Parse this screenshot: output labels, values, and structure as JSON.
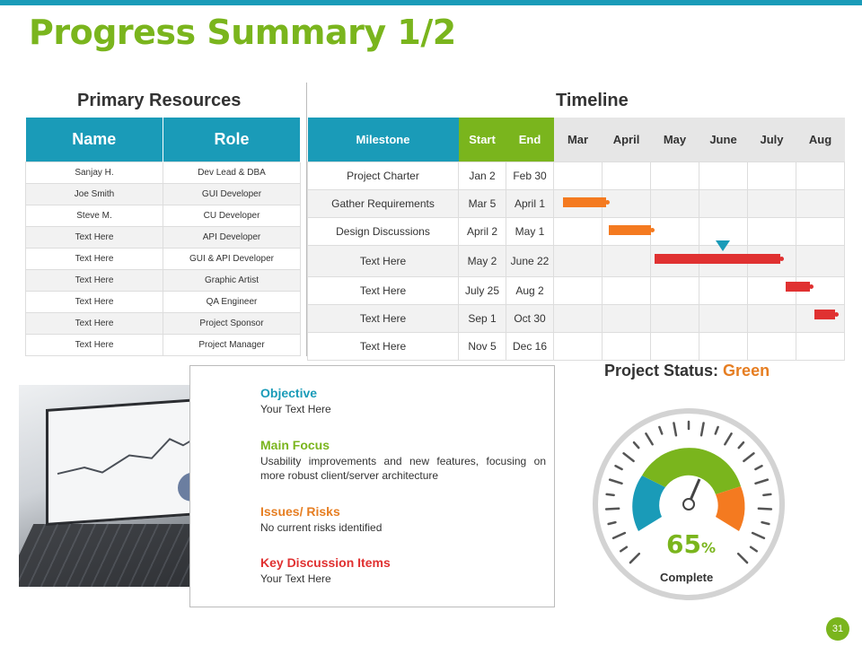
{
  "title": "Progress Summary 1/2",
  "resources": {
    "heading": "Primary Resources",
    "columns": [
      "Name",
      "Role"
    ],
    "rows": [
      [
        "Sanjay H.",
        "Dev Lead & DBA"
      ],
      [
        "Joe Smith",
        "GUI Developer"
      ],
      [
        "Steve M.",
        "CU Developer"
      ],
      [
        "Text Here",
        "API Developer"
      ],
      [
        "Text Here",
        "GUI & API Developer"
      ],
      [
        "Text Here",
        "Graphic Artist"
      ],
      [
        "Text Here",
        "QA Engineer"
      ],
      [
        "Text Here",
        "Project Sponsor"
      ],
      [
        "Text Here",
        "Project Manager"
      ]
    ]
  },
  "timeline": {
    "heading": "Timeline",
    "columns": [
      "Milestone",
      "Start",
      "End",
      "Mar",
      "April",
      "May",
      "June",
      "July",
      "Aug"
    ],
    "rows": [
      [
        "Project Charter",
        "Jan 2",
        "Feb 30"
      ],
      [
        "Gather Requirements",
        "Mar 5",
        "April 1"
      ],
      [
        "Design Discussions",
        "April 2",
        "May 1"
      ],
      [
        "Text Here",
        "May 2",
        "June 22"
      ],
      [
        "Text Here",
        "July 25",
        "Aug 2"
      ],
      [
        "Text Here",
        "Sep 1",
        "Oct 30"
      ],
      [
        "Text Here",
        "Nov 5",
        "Dec 16"
      ]
    ],
    "bar_colors": [
      "#f47a20",
      "#f47a20",
      "#e03131",
      "#e03131",
      "#e03131"
    ]
  },
  "info": {
    "objective": {
      "heading": "Objective",
      "text": "Your Text Here",
      "color": "#1a9bb8"
    },
    "main_focus": {
      "heading": "Main Focus",
      "text": "Usability improvements and new features, focusing on more robust client/server architecture",
      "color": "#7ab51d"
    },
    "issues": {
      "heading": "Issues/ Risks",
      "text": "No current risks identified",
      "color": "#e67e22"
    },
    "key_items": {
      "heading": "Key Discussion Items",
      "text": "Your Text Here",
      "color": "#e03131"
    }
  },
  "status": {
    "label": "Project Status:",
    "value": "Green",
    "percent": "65",
    "percent_sign": "%",
    "complete_label": "Complete"
  },
  "page_number": "31"
}
